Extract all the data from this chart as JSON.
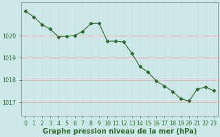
{
  "x": [
    0,
    1,
    2,
    3,
    4,
    5,
    6,
    7,
    8,
    9,
    10,
    11,
    12,
    13,
    14,
    15,
    16,
    17,
    18,
    19,
    20,
    21,
    22,
    23
  ],
  "y": [
    1021.1,
    1020.85,
    1020.5,
    1020.3,
    1019.95,
    1019.97,
    1020.0,
    1020.2,
    1020.55,
    1020.55,
    1019.75,
    1019.75,
    1019.72,
    1019.2,
    1018.6,
    1018.35,
    1017.95,
    1017.72,
    1017.48,
    1017.15,
    1017.05,
    1017.58,
    1017.68,
    1017.52
  ],
  "yticks": [
    1017,
    1018,
    1019,
    1020
  ],
  "xticks": [
    0,
    1,
    2,
    3,
    4,
    5,
    6,
    7,
    8,
    9,
    10,
    11,
    12,
    13,
    14,
    15,
    16,
    17,
    18,
    19,
    20,
    21,
    22,
    23
  ],
  "ylim": [
    1016.4,
    1021.5
  ],
  "xlim": [
    -0.5,
    23.5
  ],
  "line_color": "#2d6e2d",
  "marker": "D",
  "marker_size": 2.2,
  "bg_color": "#cce8e8",
  "hgrid_color": "#ffaaaa",
  "vgrid_color": "#ccdddd",
  "xlabel": "Graphe pression niveau de la mer (hPa)",
  "xlabel_color": "#2d6e2d",
  "tick_color": "#2d6e2d",
  "axis_color": "#888888",
  "tick_fontsize": 5.8,
  "xlabel_fontsize": 7.2,
  "linewidth": 0.85
}
